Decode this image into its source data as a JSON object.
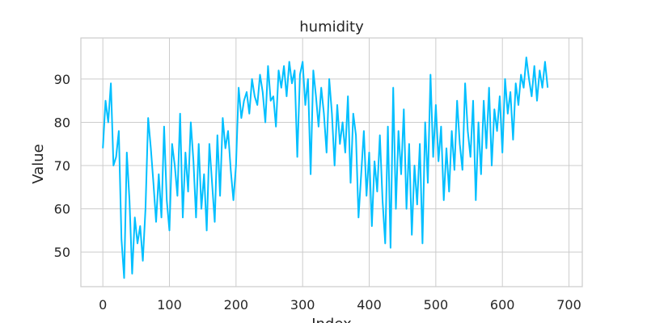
{
  "chart_data": {
    "type": "line",
    "title": "humidity",
    "xlabel": "Index",
    "ylabel": "Value",
    "xlim": [
      -33,
      720
    ],
    "ylim": [
      42,
      99.5
    ],
    "xticks": [
      0,
      100,
      200,
      300,
      400,
      500,
      600,
      700
    ],
    "yticks": [
      50,
      60,
      70,
      80,
      90
    ],
    "grid": true,
    "legend": "none",
    "colors": {
      "line": "#00bfff",
      "grid": "#cccccc",
      "axes": "#cccccc",
      "text": "#262626"
    },
    "series": [
      {
        "x": [
          0,
          4,
          8,
          12,
          16,
          20,
          24,
          28,
          32,
          36,
          40,
          44,
          48,
          52,
          56,
          60,
          64,
          68,
          72,
          76,
          80,
          84,
          88,
          92,
          96,
          100,
          104,
          108,
          112,
          116,
          120,
          124,
          128,
          132,
          136,
          140,
          144,
          148,
          152,
          156,
          160,
          164,
          168,
          172,
          176,
          180,
          184,
          188,
          192,
          196,
          200,
          204,
          208,
          212,
          216,
          220,
          224,
          228,
          232,
          236,
          240,
          244,
          248,
          252,
          256,
          260,
          264,
          268,
          272,
          276,
          280,
          284,
          288,
          292,
          296,
          300,
          304,
          308,
          312,
          316,
          320,
          324,
          328,
          332,
          336,
          340,
          344,
          348,
          352,
          356,
          360,
          364,
          368,
          372,
          376,
          380,
          384,
          388,
          392,
          396,
          400,
          404,
          408,
          412,
          416,
          420,
          424,
          428,
          432,
          436,
          440,
          444,
          448,
          452,
          456,
          460,
          464,
          468,
          472,
          476,
          480,
          484,
          488,
          492,
          496,
          500,
          504,
          508,
          512,
          516,
          520,
          524,
          528,
          532,
          536,
          540,
          544,
          548,
          552,
          556,
          560,
          564,
          568,
          572,
          576,
          580,
          584,
          588,
          592,
          596,
          600,
          604,
          608,
          612,
          616,
          620,
          624,
          628,
          632,
          636,
          640,
          644,
          648,
          652,
          656,
          660,
          664,
          668
        ],
        "y": [
          74,
          85,
          80,
          89,
          70,
          72,
          78,
          53,
          44,
          73,
          62,
          45,
          58,
          52,
          56,
          48,
          60,
          81,
          74,
          66,
          57,
          68,
          58,
          79,
          62,
          55,
          75,
          70,
          63,
          82,
          58,
          73,
          64,
          80,
          71,
          58,
          75,
          60,
          68,
          55,
          75,
          66,
          57,
          77,
          63,
          81,
          74,
          78,
          69,
          62,
          70,
          88,
          81,
          85,
          87,
          82,
          90,
          86,
          84,
          91,
          87,
          80,
          93,
          85,
          86,
          79,
          92,
          88,
          93,
          86,
          94,
          89,
          92,
          72,
          91,
          94,
          84,
          90,
          68,
          92,
          86,
          79,
          88,
          82,
          73,
          90,
          82,
          70,
          84,
          75,
          80,
          73,
          86,
          66,
          82,
          77,
          58,
          68,
          78,
          63,
          73,
          56,
          71,
          64,
          77,
          62,
          52,
          79,
          51,
          88,
          60,
          78,
          68,
          83,
          60,
          75,
          54,
          70,
          61,
          75,
          52,
          80,
          66,
          91,
          72,
          84,
          71,
          79,
          62,
          74,
          64,
          78,
          69,
          85,
          75,
          69,
          89,
          78,
          72,
          85,
          62,
          80,
          68,
          85,
          74,
          88,
          70,
          83,
          78,
          86,
          73,
          90,
          82,
          87,
          76,
          89,
          84,
          91,
          88,
          95,
          90,
          86,
          93,
          85,
          92,
          88,
          94,
          88
        ]
      }
    ]
  }
}
